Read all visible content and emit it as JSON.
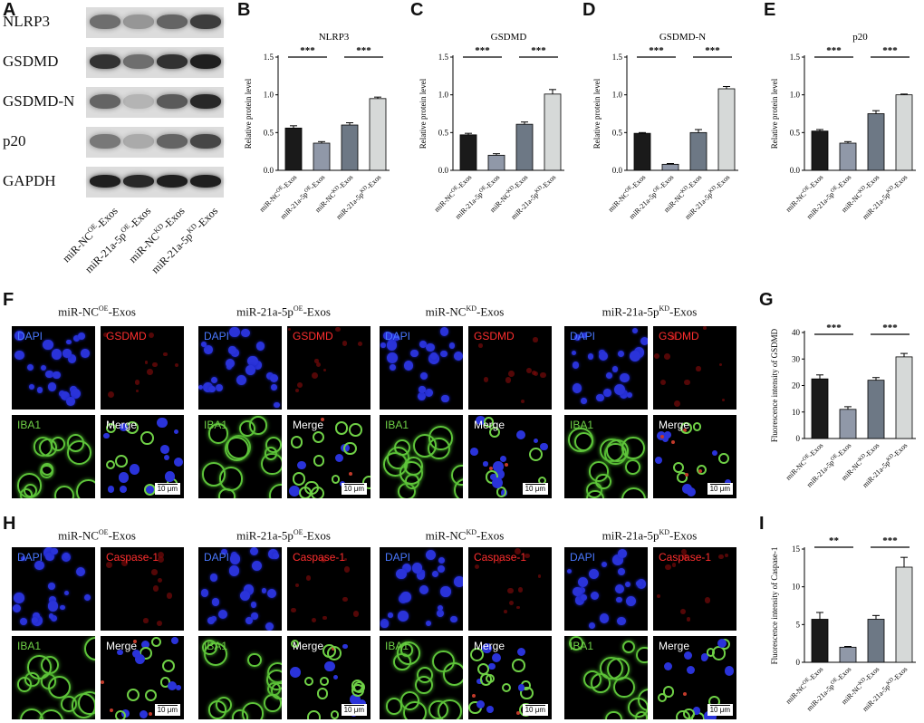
{
  "panel_letters": [
    "A",
    "B",
    "C",
    "D",
    "E",
    "F",
    "G",
    "H",
    "I"
  ],
  "western_blot": {
    "rows": [
      "NLRP3",
      "GSDMD",
      "GSDMD-N",
      "p20",
      "GAPDH"
    ],
    "lanes": [
      {
        "base": "miR-NC",
        "sup": "OE",
        "tail": "-Exos"
      },
      {
        "base": "miR-21a-5p",
        "sup": "OE",
        "tail": "-Exos"
      },
      {
        "base": "miR-NC",
        "sup": "KD",
        "tail": "-Exos"
      },
      {
        "base": "miR-21a-5p",
        "sup": "KD",
        "tail": "-Exos"
      }
    ]
  },
  "chart_data": [
    {
      "type": "bar",
      "panel": "B",
      "title": "NLRP3",
      "ylabel": "Relative protein level",
      "ylim": [
        0,
        1.5
      ],
      "yticks": [
        "0.0",
        "0.5",
        "1.0",
        "1.5"
      ],
      "categories": [
        "miR-NC^OE-Exos",
        "miR-21a-5p^OE-Exos",
        "miR-NC^KD-Exos",
        "miR-21a-5p^KD-Exos"
      ],
      "values": [
        0.56,
        0.36,
        0.6,
        0.95
      ],
      "errors": [
        0.03,
        0.02,
        0.03,
        0.02
      ],
      "significance": [
        "***",
        "***"
      ]
    },
    {
      "type": "bar",
      "panel": "C",
      "title": "GSDMD",
      "ylabel": "Relative protein level",
      "ylim": [
        0,
        1.5
      ],
      "yticks": [
        "0.0",
        "0.5",
        "1.0",
        "1.5"
      ],
      "categories": [
        "miR-NC^OE-Exos",
        "miR-21a-5p^OE-Exos",
        "miR-NC^KD-Exos",
        "miR-21a-5p^KD-Exos"
      ],
      "values": [
        0.47,
        0.2,
        0.61,
        1.01
      ],
      "errors": [
        0.02,
        0.02,
        0.03,
        0.06
      ],
      "significance": [
        "***",
        "***"
      ]
    },
    {
      "type": "bar",
      "panel": "D",
      "title": "GSDMD-N",
      "ylabel": "Relative protein level",
      "ylim": [
        0,
        1.5
      ],
      "yticks": [
        "0.0",
        "0.5",
        "1.0",
        "1.5"
      ],
      "categories": [
        "miR-NC^OE-Exos",
        "miR-21a-5p^OE-Exos",
        "miR-NC^KD-Exos",
        "miR-21a-5p^KD-Exos"
      ],
      "values": [
        0.49,
        0.08,
        0.5,
        1.08
      ],
      "errors": [
        0.01,
        0.01,
        0.04,
        0.03
      ],
      "significance": [
        "***",
        "***"
      ]
    },
    {
      "type": "bar",
      "panel": "E",
      "title": "p20",
      "ylabel": "Relative protein level",
      "ylim": [
        0,
        1.5
      ],
      "yticks": [
        "0.0",
        "0.5",
        "1.0",
        "1.5"
      ],
      "categories": [
        "miR-NC^OE-Exos",
        "miR-21a-5p^OE-Exos",
        "miR-NC^KD-Exos",
        "miR-21a-5p^KD-Exos"
      ],
      "values": [
        0.52,
        0.36,
        0.75,
        1.0
      ],
      "errors": [
        0.02,
        0.02,
        0.04,
        0.01
      ],
      "significance": [
        "***",
        "***"
      ]
    },
    {
      "type": "bar",
      "panel": "G",
      "title": "",
      "ylabel": "Fluorescence intensity of GSDMD",
      "ylim": [
        0,
        40
      ],
      "yticks": [
        "0",
        "10",
        "20",
        "30",
        "40"
      ],
      "categories": [
        "miR-NC^OE-Exos",
        "miR-21a-5p^OE-Exos",
        "miR-NC^KD-Exos",
        "miR-21a-5p^KD-Exos"
      ],
      "values": [
        22.5,
        11.0,
        22.0,
        30.8
      ],
      "errors": [
        1.5,
        1.0,
        1.0,
        1.3
      ],
      "significance": [
        "***",
        "***"
      ]
    },
    {
      "type": "bar",
      "panel": "I",
      "title": "",
      "ylabel": "Fluorescence intensity of Caspase-1",
      "ylim": [
        0,
        15
      ],
      "yticks": [
        "0",
        "5",
        "10",
        "15"
      ],
      "categories": [
        "miR-NC^OE-Exos",
        "miR-21a-5p^OE-Exos",
        "miR-NC^KD-Exos",
        "miR-21a-5p^KD-Exos"
      ],
      "values": [
        5.7,
        2.0,
        5.7,
        12.6
      ],
      "errors": [
        0.9,
        0.1,
        0.5,
        1.3
      ],
      "significance": [
        "**",
        "***"
      ]
    }
  ],
  "bar_colors": [
    "#1a1a1a",
    "#9098a8",
    "#6d7885",
    "#d6d9d8"
  ],
  "if_groups": [
    {
      "base": "miR-NC",
      "sup": "OE",
      "tail": "-Exos"
    },
    {
      "base": "miR-21a-5p",
      "sup": "OE",
      "tail": "-Exos"
    },
    {
      "base": "miR-NC",
      "sup": "KD",
      "tail": "-Exos"
    },
    {
      "base": "miR-21a-5p",
      "sup": "KD",
      "tail": "-Exos"
    }
  ],
  "if_labels_F": [
    "DAPI",
    "GSDMD",
    "IBA1",
    "Merge"
  ],
  "if_labels_H": [
    "DAPI",
    "Caspase-1",
    "IBA1",
    "Merge"
  ],
  "scale_bar": "10 μm"
}
